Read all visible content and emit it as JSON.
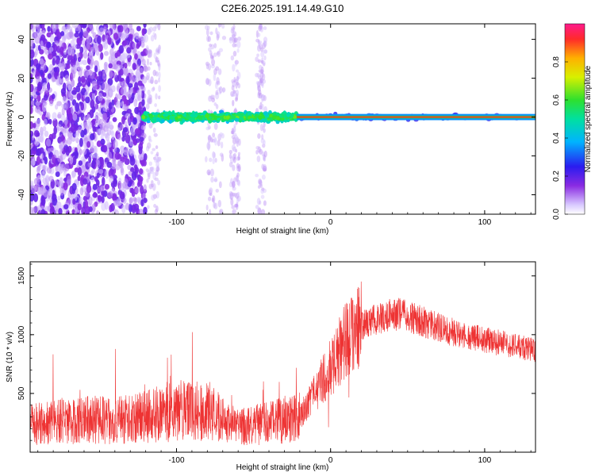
{
  "title": "C2E6.2025.191.14.49.G10",
  "chart_data": [
    {
      "type": "heatmap",
      "xlabel": "Height of straight line (km)",
      "ylabel": "Frequency (Hz)",
      "xlim": [
        -195,
        133
      ],
      "ylim": [
        -50,
        48
      ],
      "xticks": [
        -100,
        0,
        100
      ],
      "yticks": [
        -40,
        -20,
        0,
        20,
        40
      ],
      "colorbar": {
        "label": "Normalized spectral amplitude",
        "range": [
          0,
          1
        ],
        "ticks": [
          0.0,
          0.2,
          0.4,
          0.6,
          0.8
        ],
        "tick_labels": [
          "0.0",
          "0.2",
          "0.4",
          "0.6",
          "0.8"
        ]
      },
      "regions": [
        {
          "x": [
            -195,
            -122
          ],
          "y": [
            -50,
            48
          ],
          "description": "scattered noise, normalized amplitude ~0.0-0.1"
        },
        {
          "x": [
            -122,
            -22
          ],
          "y": [
            -6,
            6
          ],
          "description": "band centered at 0 Hz, amplitude ~0.2-0.5"
        },
        {
          "x": [
            -22,
            133
          ],
          "y": [
            -1.5,
            1.5
          ],
          "description": "narrow line at 0 Hz, amplitude ~0.8-1.0"
        }
      ]
    },
    {
      "type": "line",
      "xlabel": "Height of straight line (km)",
      "ylabel": "SNR (10 * v/v)",
      "xlim": [
        -195,
        133
      ],
      "ylim": [
        0,
        1620
      ],
      "xticks": [
        -100,
        0,
        100
      ],
      "yticks": [
        500,
        1000,
        1500
      ],
      "color": "#ee3333",
      "series": [
        {
          "x": [
            -195,
            -180,
            -160,
            -140,
            -120,
            -100,
            -80,
            -60,
            -40,
            -20,
            -10,
            0,
            10,
            20,
            30,
            40,
            50,
            60,
            70,
            80,
            90,
            100,
            110,
            120,
            133
          ],
          "values": [
            230,
            260,
            280,
            270,
            300,
            360,
            340,
            210,
            250,
            300,
            500,
            720,
            950,
            1080,
            1130,
            1180,
            1160,
            1110,
            1060,
            1020,
            980,
            960,
            930,
            900,
            870
          ]
        }
      ]
    }
  ]
}
